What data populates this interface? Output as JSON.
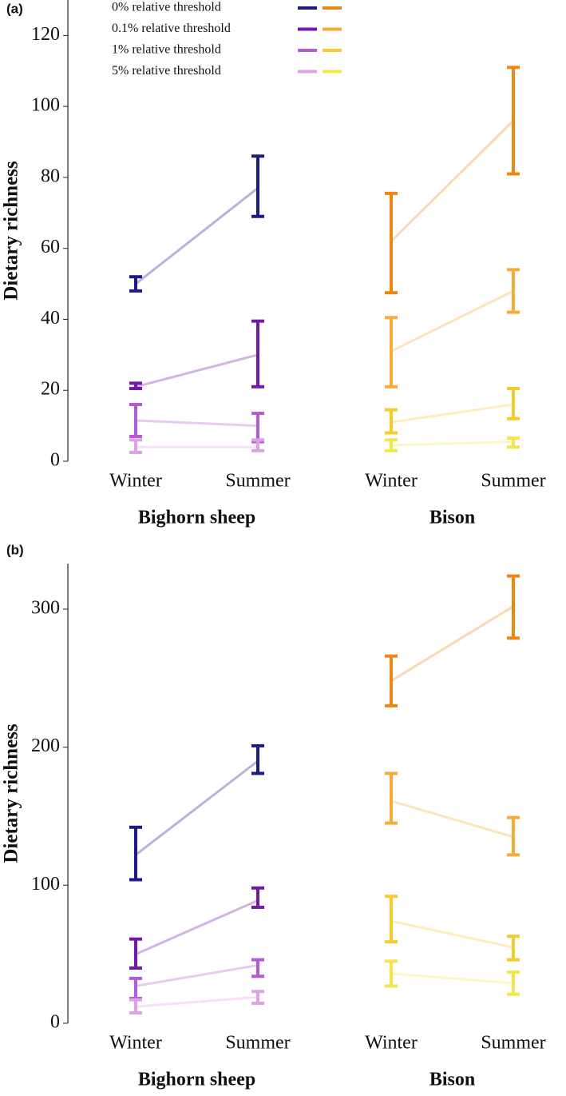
{
  "chart_data": [
    {
      "type": "errorbar",
      "label": "(a)",
      "ylabel": "Dietary richness",
      "categories": [
        "Winter",
        "Summer",
        "Winter",
        "Summer"
      ],
      "groups": [
        "Bighorn sheep",
        "Bison"
      ],
      "ylim": [
        0,
        130
      ],
      "yticks": [
        0,
        20,
        40,
        60,
        80,
        100,
        120
      ],
      "legend": "top-left",
      "series": [
        {
          "name": "0% relative threshold",
          "colors": [
            "#1d1a87",
            "#ee8612"
          ],
          "values": [
            50,
            77,
            62,
            96
          ],
          "lower": [
            48,
            69,
            47.5,
            81
          ],
          "upper": [
            52,
            86,
            75.5,
            111
          ]
        },
        {
          "name": "0.1% relative threshold",
          "colors": [
            "#7418a6",
            "#f6ac36"
          ],
          "values": [
            21,
            30,
            31,
            48
          ],
          "lower": [
            20.5,
            21,
            21,
            42
          ],
          "upper": [
            22,
            39.5,
            40.5,
            54
          ]
        },
        {
          "name": "1% relative threshold",
          "colors": [
            "#b45ad4",
            "#f5cc2c"
          ],
          "values": [
            11.5,
            10,
            11,
            16
          ],
          "lower": [
            7,
            5.5,
            8,
            12
          ],
          "upper": [
            16,
            13.5,
            14.5,
            20.5
          ]
        },
        {
          "name": "5% relative threshold",
          "colors": [
            "#dfa0e5",
            "#f3e54a"
          ],
          "values": [
            4,
            4,
            4.5,
            5.5
          ],
          "lower": [
            2.5,
            3,
            3,
            4
          ],
          "upper": [
            6,
            6,
            6,
            6.5
          ]
        }
      ]
    },
    {
      "type": "errorbar",
      "label": "(b)",
      "ylabel": "Dietary richness",
      "categories": [
        "Winter",
        "Summer",
        "Winter",
        "Summer"
      ],
      "groups": [
        "Bighorn sheep",
        "Bison"
      ],
      "ylim": [
        0,
        333
      ],
      "yticks": [
        0,
        100,
        200,
        300
      ],
      "series": [
        {
          "colors": [
            "#1d1a87",
            "#ee8612"
          ],
          "values": [
            122,
            190,
            248,
            302
          ],
          "lower": [
            104,
            181,
            230,
            279
          ],
          "upper": [
            142,
            201,
            266,
            324
          ]
        },
        {
          "colors": [
            "#7418a6",
            "#f6ac36"
          ],
          "values": [
            50,
            89,
            161,
            135
          ],
          "lower": [
            40,
            84,
            145,
            122
          ],
          "upper": [
            61,
            98,
            181,
            149
          ]
        },
        {
          "colors": [
            "#b45ad4",
            "#f5cc2c"
          ],
          "values": [
            27,
            42,
            74,
            55
          ],
          "lower": [
            18,
            34,
            59,
            46
          ],
          "upper": [
            32.5,
            46,
            92,
            63
          ]
        },
        {
          "colors": [
            "#dfa0e5",
            "#f3e54a"
          ],
          "values": [
            12,
            19,
            36,
            29
          ],
          "lower": [
            7.5,
            14.5,
            27,
            21
          ],
          "upper": [
            17,
            23,
            45,
            37
          ]
        }
      ]
    }
  ]
}
